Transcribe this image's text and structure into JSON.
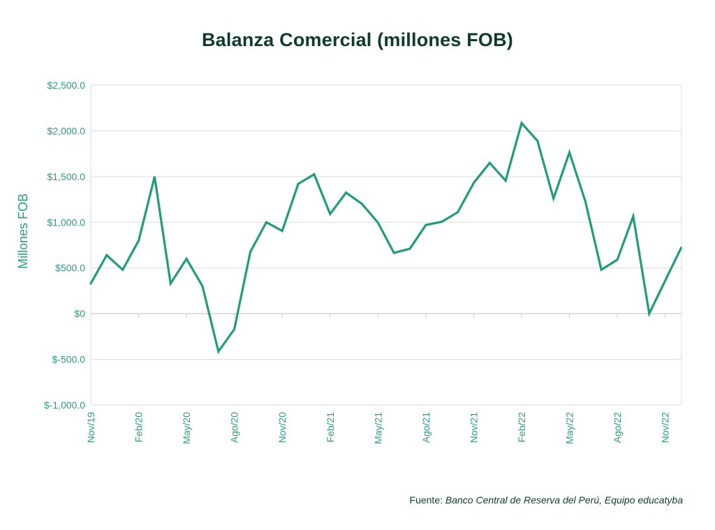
{
  "chart_data": {
    "type": "line",
    "title": "Balanza Comercial (millones FOB)",
    "ylabel": "Millones FOB",
    "xlabel": "",
    "ylim": [
      -1000,
      2500
    ],
    "yticks": [
      2500,
      2000,
      1500,
      1000,
      500,
      0,
      -500,
      -1000
    ],
    "ytick_labels": [
      "$2,500.0",
      "$2,000.0",
      "$1,500.0",
      "$1,000.0",
      "$500.0",
      "$0",
      "$-500.0",
      "$-1,000.0"
    ],
    "xtick_labels": [
      "Nov/19",
      "Feb/20",
      "May/20",
      "Ago/20",
      "Nov/20",
      "Feb/21",
      "May/21",
      "Ago/21",
      "Nov/21",
      "Feb/22",
      "May/22",
      "Ago/22",
      "Nov/22"
    ],
    "x": [
      "Nov/19",
      "Dic/19",
      "Ene/20",
      "Feb/20",
      "Mar/20",
      "Abr/20",
      "May/20",
      "Jun/20",
      "Jul/20",
      "Ago/20",
      "Sep/20",
      "Oct/20",
      "Nov/20",
      "Dic/20",
      "Ene/21",
      "Feb/21",
      "Mar/21",
      "Abr/21",
      "May/21",
      "Jun/21",
      "Jul/21",
      "Ago/21",
      "Sep/21",
      "Oct/21",
      "Nov/21",
      "Dic/21",
      "Ene/22",
      "Feb/22",
      "Mar/22",
      "Abr/22",
      "May/22",
      "Jun/22",
      "Jul/22",
      "Ago/22",
      "Sep/22",
      "Oct/22",
      "Nov/22",
      "Dic/22"
    ],
    "series": [
      {
        "values": [
          330,
          640,
          480,
          800,
          1500,
          330,
          600,
          300,
          -415,
          -170,
          675,
          1000,
          905,
          1420,
          1525,
          1090,
          1325,
          1200,
          995,
          665,
          710,
          970,
          1005,
          1110,
          1430,
          1650,
          1455,
          2085,
          1890,
          1260,
          1765,
          1225,
          480,
          590,
          1065,
          0,
          360,
          720
        ],
        "color": "#1f9d78"
      }
    ],
    "grid": true,
    "legend": "none"
  },
  "source": {
    "prefix": "Fuente: ",
    "text": "Banco Central de Reserva del Perú, Equipo educatyba"
  }
}
